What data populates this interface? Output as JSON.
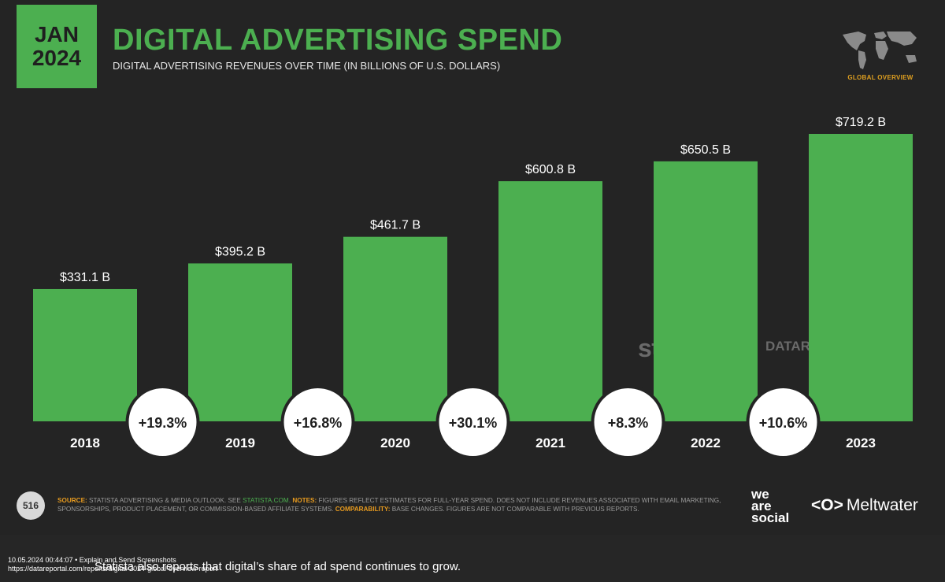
{
  "header": {
    "badge_line1": "JAN",
    "badge_line2": "2024",
    "title": "DIGITAL ADVERTISING SPEND",
    "subtitle": "DIGITAL ADVERTISING REVENUES OVER TIME (IN BILLIONS OF U.S. DOLLARS)",
    "global_label": "GLOBAL OVERVIEW",
    "globe_icon": "world-map-icon"
  },
  "chart_data": {
    "type": "bar",
    "categories": [
      "2018",
      "2019",
      "2020",
      "2021",
      "2022",
      "2023"
    ],
    "values": [
      331.1,
      395.2,
      461.7,
      600.8,
      650.5,
      719.2
    ],
    "value_labels": [
      "$331.1 B",
      "$395.2 B",
      "$461.7 B",
      "$600.8 B",
      "$650.5 B",
      "$719.2 B"
    ],
    "growth_labels": [
      "+19.3%",
      "+16.8%",
      "+30.1%",
      "+8.3%",
      "+10.6%"
    ],
    "title": "DIGITAL ADVERTISING SPEND",
    "xlabel": "",
    "ylabel": "",
    "grid": false,
    "bar_color": "#4caf50"
  },
  "watermarks": {
    "statista": "statista",
    "datareportal": "DATAREPORTAL"
  },
  "footer": {
    "page_number": "516",
    "source_key": "SOURCE:",
    "source_text": "STATISTA ADVERTISING & MEDIA OUTLOOK. SEE",
    "source_link": "STATISTA.COM.",
    "notes_key": "NOTES:",
    "notes_text": "FIGURES REFLECT ESTIMATES FOR FULL-YEAR SPEND. DOES NOT INCLUDE REVENUES ASSOCIATED WITH EMAIL MARKETING, SPONSORSHIPS, PRODUCT PLACEMENT, OR COMMISSION-BASED AFFILIATE SYSTEMS.",
    "comparability_key": "COMPARABILITY:",
    "comparability_text": "BASE CHANGES. FIGURES ARE NOT COMPARABLE WITH PREVIOUS REPORTS.",
    "brand1_line1": "we",
    "brand1_line2": "are",
    "brand1_line3": "social",
    "brand2": "Meltwater"
  },
  "screenshot_footer": {
    "line1": "10.05.2024 00:44:07 • Explain and Send Screenshots",
    "line2": "https://datareportal.com/reports/digital-2024-global-overview-report",
    "caption": "Statista also reports that digital’s share of ad spend continues to grow."
  },
  "colors": {
    "accent": "#4caf50",
    "background": "#242424",
    "highlight": "#e69a1f"
  }
}
